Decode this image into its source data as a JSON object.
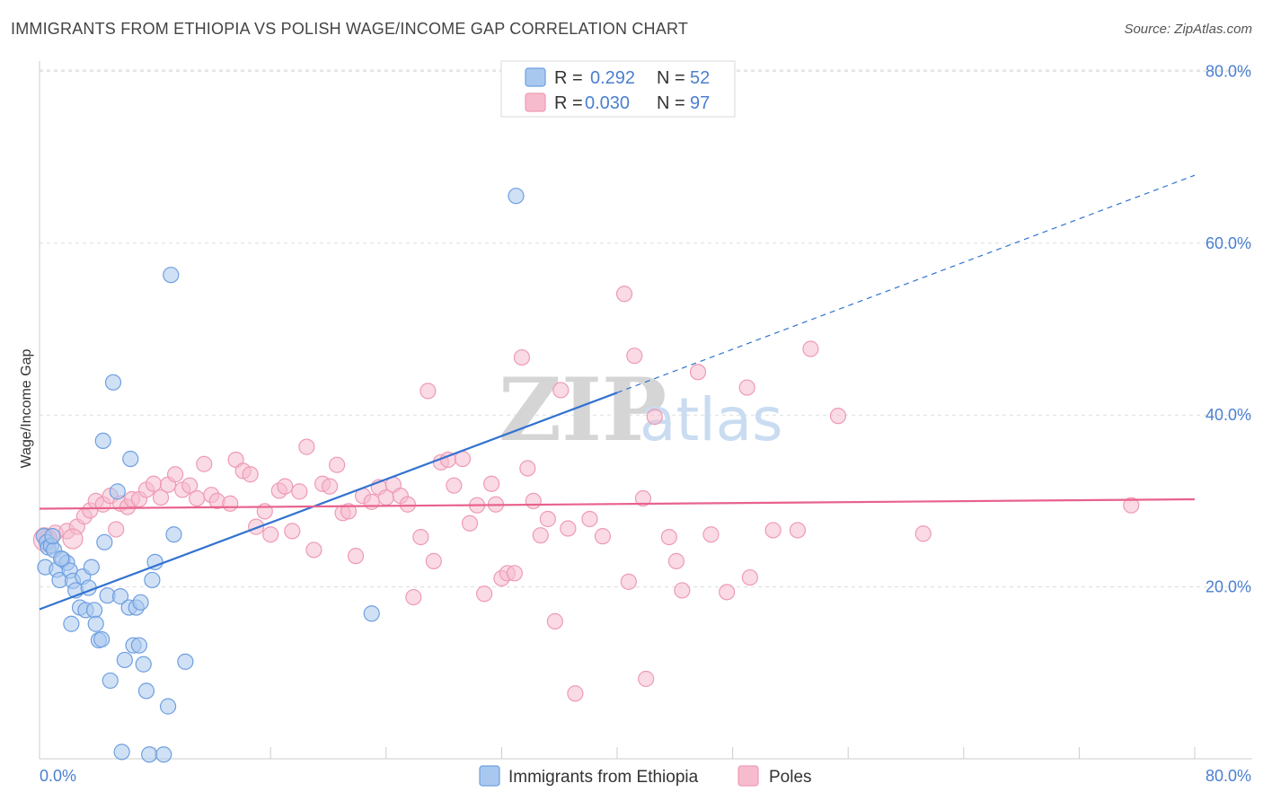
{
  "title": "IMMIGRANTS FROM ETHIOPIA VS POLISH WAGE/INCOME GAP CORRELATION CHART",
  "source": "Source: ZipAtlas.com",
  "watermark": {
    "zip": "ZIP",
    "atlas": "atlas"
  },
  "colors": {
    "blue_fill": "#a9c8ef",
    "blue_stroke": "#6e9fe0",
    "blue_line": "#3272d2",
    "pink_fill": "#f6bccd",
    "pink_stroke": "#ee9bb5",
    "pink_line": "#e8628c",
    "axis_text": "#4a7fd0",
    "grid": "#dddddd"
  },
  "legend": {
    "rows": [
      {
        "r_label": "R = ",
        "r_value": "0.292",
        "n_label": "N = ",
        "n_value": "52",
        "color": "blue"
      },
      {
        "r_label": "R = ",
        "r_value": "0.030",
        "n_label": "N = ",
        "n_value": "97",
        "color": "pink"
      }
    ]
  },
  "chart_data": {
    "type": "scatter",
    "title": "IMMIGRANTS FROM ETHIOPIA VS POLISH WAGE/INCOME GAP CORRELATION CHART",
    "xlabel": "",
    "ylabel": "Wage/Income Gap",
    "xlim": [
      0,
      80
    ],
    "ylim": [
      0,
      80
    ],
    "x_tick_labels": [
      "0.0%",
      "80.0%"
    ],
    "y_tick_labels": [
      "20.0%",
      "40.0%",
      "60.0%",
      "80.0%"
    ],
    "y_ticks": [
      20,
      40,
      60,
      80
    ],
    "grid": true,
    "legend_position": "top-center",
    "series": [
      {
        "name": "Immigrants from Ethiopia",
        "color": "blue",
        "r": 0.292,
        "n": 52,
        "trend": {
          "x0": 0,
          "y0": 17.4,
          "x1": 40,
          "y1": 42.6,
          "dashed_to_x": 80,
          "dashed_to_y": 67.9
        },
        "points": [
          [
            0.3,
            25.9
          ],
          [
            0.5,
            25.2
          ],
          [
            0.6,
            24.6
          ],
          [
            0.8,
            24.8
          ],
          [
            1.0,
            24.3
          ],
          [
            0.4,
            22.3
          ],
          [
            1.2,
            22.0
          ],
          [
            1.6,
            23.2
          ],
          [
            1.9,
            22.8
          ],
          [
            1.4,
            20.8
          ],
          [
            2.1,
            21.9
          ],
          [
            2.3,
            20.7
          ],
          [
            2.5,
            19.6
          ],
          [
            2.8,
            17.6
          ],
          [
            3.0,
            21.2
          ],
          [
            3.2,
            17.3
          ],
          [
            3.4,
            19.9
          ],
          [
            3.6,
            22.3
          ],
          [
            3.8,
            17.3
          ],
          [
            3.9,
            15.7
          ],
          [
            4.1,
            13.8
          ],
          [
            4.3,
            13.9
          ],
          [
            4.5,
            25.2
          ],
          [
            4.7,
            19.0
          ],
          [
            4.9,
            9.1
          ],
          [
            5.1,
            43.8
          ],
          [
            5.4,
            31.1
          ],
          [
            5.6,
            18.9
          ],
          [
            5.7,
            0.8
          ],
          [
            5.9,
            11.5
          ],
          [
            6.2,
            17.6
          ],
          [
            6.3,
            34.9
          ],
          [
            6.5,
            13.2
          ],
          [
            6.7,
            17.6
          ],
          [
            6.9,
            13.2
          ],
          [
            7.0,
            18.2
          ],
          [
            7.2,
            11.0
          ],
          [
            7.4,
            7.9
          ],
          [
            7.6,
            0.5
          ],
          [
            7.8,
            20.8
          ],
          [
            8.0,
            22.9
          ],
          [
            8.6,
            0.5
          ],
          [
            8.9,
            6.1
          ],
          [
            9.1,
            56.3
          ],
          [
            9.3,
            26.1
          ],
          [
            10.1,
            11.3
          ],
          [
            4.4,
            37.0
          ],
          [
            2.2,
            15.7
          ],
          [
            0.9,
            25.9
          ],
          [
            1.5,
            23.3
          ],
          [
            23.0,
            16.9
          ],
          [
            33.0,
            65.5
          ]
        ]
      },
      {
        "name": "Poles",
        "color": "pink",
        "r": 0.03,
        "n": 97,
        "trend": {
          "x0": 0,
          "y0": 29.1,
          "x1": 80,
          "y1": 30.2
        },
        "points": [
          [
            0.3,
            26.0
          ],
          [
            0.5,
            25.7
          ],
          [
            1.1,
            26.3
          ],
          [
            1.9,
            26.5
          ],
          [
            2.6,
            27.0
          ],
          [
            3.1,
            28.2
          ],
          [
            3.5,
            28.9
          ],
          [
            3.9,
            30.0
          ],
          [
            4.4,
            29.6
          ],
          [
            4.9,
            30.6
          ],
          [
            5.3,
            26.7
          ],
          [
            5.6,
            29.7
          ],
          [
            6.1,
            29.3
          ],
          [
            6.4,
            30.2
          ],
          [
            6.9,
            30.2
          ],
          [
            7.4,
            31.3
          ],
          [
            7.9,
            32.0
          ],
          [
            8.4,
            30.4
          ],
          [
            8.9,
            31.9
          ],
          [
            9.4,
            33.1
          ],
          [
            9.9,
            31.3
          ],
          [
            10.4,
            31.8
          ],
          [
            10.9,
            30.3
          ],
          [
            11.4,
            34.3
          ],
          [
            11.9,
            30.7
          ],
          [
            12.3,
            30.0
          ],
          [
            13.2,
            29.7
          ],
          [
            13.6,
            34.8
          ],
          [
            14.1,
            33.5
          ],
          [
            14.6,
            33.1
          ],
          [
            15.0,
            27.0
          ],
          [
            15.6,
            28.8
          ],
          [
            16.0,
            26.1
          ],
          [
            16.6,
            31.2
          ],
          [
            17.0,
            31.7
          ],
          [
            17.5,
            26.5
          ],
          [
            18.0,
            31.1
          ],
          [
            18.5,
            36.3
          ],
          [
            19.0,
            24.3
          ],
          [
            19.6,
            32.0
          ],
          [
            20.1,
            31.7
          ],
          [
            20.6,
            34.2
          ],
          [
            21.0,
            28.6
          ],
          [
            21.4,
            28.8
          ],
          [
            21.9,
            23.6
          ],
          [
            22.4,
            30.6
          ],
          [
            23.0,
            29.9
          ],
          [
            23.5,
            31.6
          ],
          [
            24.0,
            30.4
          ],
          [
            24.5,
            31.9
          ],
          [
            25.0,
            30.6
          ],
          [
            25.5,
            29.6
          ],
          [
            25.9,
            18.8
          ],
          [
            26.4,
            25.8
          ],
          [
            26.9,
            42.8
          ],
          [
            27.3,
            23.0
          ],
          [
            27.8,
            34.5
          ],
          [
            28.3,
            34.8
          ],
          [
            28.7,
            31.8
          ],
          [
            29.3,
            34.9
          ],
          [
            29.8,
            27.4
          ],
          [
            30.3,
            29.5
          ],
          [
            30.8,
            19.2
          ],
          [
            31.3,
            32.0
          ],
          [
            31.6,
            29.6
          ],
          [
            32.0,
            21.0
          ],
          [
            32.4,
            21.6
          ],
          [
            32.9,
            21.6
          ],
          [
            33.4,
            46.7
          ],
          [
            33.8,
            33.8
          ],
          [
            34.2,
            30.0
          ],
          [
            34.7,
            26.0
          ],
          [
            35.2,
            27.9
          ],
          [
            35.7,
            16.0
          ],
          [
            36.1,
            42.9
          ],
          [
            36.6,
            26.8
          ],
          [
            37.1,
            7.6
          ],
          [
            38.1,
            27.9
          ],
          [
            39.0,
            25.9
          ],
          [
            40.5,
            54.1
          ],
          [
            40.8,
            20.6
          ],
          [
            41.2,
            46.9
          ],
          [
            41.8,
            30.3
          ],
          [
            42.0,
            9.3
          ],
          [
            42.6,
            39.8
          ],
          [
            43.6,
            25.8
          ],
          [
            44.1,
            23.0
          ],
          [
            44.5,
            19.6
          ],
          [
            45.6,
            45.0
          ],
          [
            46.5,
            26.1
          ],
          [
            47.6,
            19.4
          ],
          [
            49.0,
            43.2
          ],
          [
            49.2,
            21.1
          ],
          [
            50.8,
            26.6
          ],
          [
            52.5,
            26.6
          ],
          [
            53.4,
            47.7
          ],
          [
            55.3,
            39.9
          ],
          [
            61.2,
            26.2
          ],
          [
            75.6,
            29.5
          ]
        ]
      }
    ]
  },
  "bottom_legend": [
    {
      "label": "Immigrants from Ethiopia",
      "color": "blue"
    },
    {
      "label": "Poles",
      "color": "pink"
    }
  ]
}
